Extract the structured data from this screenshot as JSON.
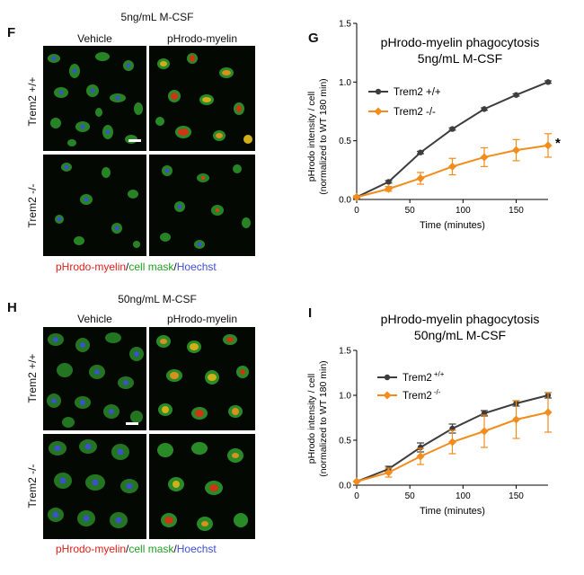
{
  "top": {
    "letter_images": "F",
    "letter_chart": "G",
    "concentration": "5ng/mL M-CSF",
    "col_vehicle": "Vehicle",
    "col_myelin": "pHrodo-myelin",
    "row_wt": "Trem2 +/+",
    "row_ko": "Trem2 -/-",
    "legend": {
      "red": "pHrodo-myelin",
      "sep1": "/",
      "green": "cell mask",
      "sep2": "/",
      "blue": "Hoechst"
    }
  },
  "bottom": {
    "letter_images": "H",
    "letter_chart": "I",
    "concentration": "50ng/mL M-CSF",
    "col_vehicle": "Vehicle",
    "col_myelin": "pHrodo-myelin",
    "row_wt": "Trem2 +/+",
    "row_ko": "Trem2 -/-",
    "legend": {
      "red": "pHrodo-myelin",
      "sep1": "/",
      "green": "cell mask",
      "sep2": "/",
      "blue": "Hoechst"
    }
  },
  "colors": {
    "wt": "#3d3d3d",
    "ko": "#f28c1c",
    "stain_red": "#e0201c",
    "stain_green": "#22a022",
    "stain_blue": "#3f4fd8"
  },
  "chart_data": [
    {
      "type": "line",
      "title": [
        "pHrodo-myelin phagocytosis",
        "5ng/mL M-CSF"
      ],
      "xlabel": "Time (minutes)",
      "ylabel": [
        "pHrodo intensity / cell",
        "(normalized to WT 180 min)"
      ],
      "xlim": [
        0,
        180
      ],
      "ylim": [
        0,
        1.5
      ],
      "xticks": [
        0,
        50,
        100,
        150
      ],
      "yticks": [
        0.0,
        0.5,
        1.0,
        1.5
      ],
      "ytick_labels": [
        "0.0",
        "0.5",
        "1.0",
        "1.5"
      ],
      "legend_position": "top-left",
      "annotation": "*",
      "x": [
        0,
        30,
        60,
        90,
        120,
        150,
        180
      ],
      "series": [
        {
          "name": "Trem2 +/+",
          "values": [
            0.02,
            0.15,
            0.4,
            0.6,
            0.77,
            0.89,
            1.0
          ],
          "errors": [
            0.01,
            0.01,
            0.01,
            0.01,
            0.01,
            0.01,
            0.01
          ],
          "color": "#3d3d3d"
        },
        {
          "name": "Trem2 -/-",
          "values": [
            0.02,
            0.09,
            0.18,
            0.28,
            0.36,
            0.42,
            0.46
          ],
          "errors": [
            0.01,
            0.02,
            0.05,
            0.07,
            0.08,
            0.09,
            0.1
          ],
          "color": "#f28c1c"
        }
      ]
    },
    {
      "type": "line",
      "title": [
        "pHrodo-myelin phagocytosis",
        "50ng/mL M-CSF"
      ],
      "xlabel": "Time (minutes)",
      "ylabel": [
        "pHrodo intensity / cell",
        "(normalized to WT 180 min)"
      ],
      "xlim": [
        0,
        180
      ],
      "ylim": [
        0,
        1.5
      ],
      "xticks": [
        0,
        50,
        100,
        150
      ],
      "yticks": [
        0.0,
        0.5,
        1.0,
        1.5
      ],
      "ytick_labels": [
        "0.0",
        "0.5",
        "1.0",
        "1.5"
      ],
      "legend_position": "top-left",
      "x": [
        0,
        30,
        60,
        90,
        120,
        150,
        180
      ],
      "series": [
        {
          "name": "Trem2 +/+",
          "name_base": "Trem2",
          "name_sup": "+/+",
          "values": [
            0.04,
            0.18,
            0.42,
            0.63,
            0.8,
            0.91,
            1.0
          ],
          "errors": [
            0.01,
            0.03,
            0.05,
            0.05,
            0.03,
            0.03,
            0.03
          ],
          "color": "#3d3d3d"
        },
        {
          "name": "Trem2 -/-",
          "name_base": "Trem2",
          "name_sup": "-/-",
          "values": [
            0.04,
            0.14,
            0.32,
            0.48,
            0.6,
            0.73,
            0.81
          ],
          "errors": [
            0.01,
            0.05,
            0.09,
            0.13,
            0.18,
            0.21,
            0.22
          ],
          "color": "#f28c1c"
        }
      ]
    }
  ]
}
